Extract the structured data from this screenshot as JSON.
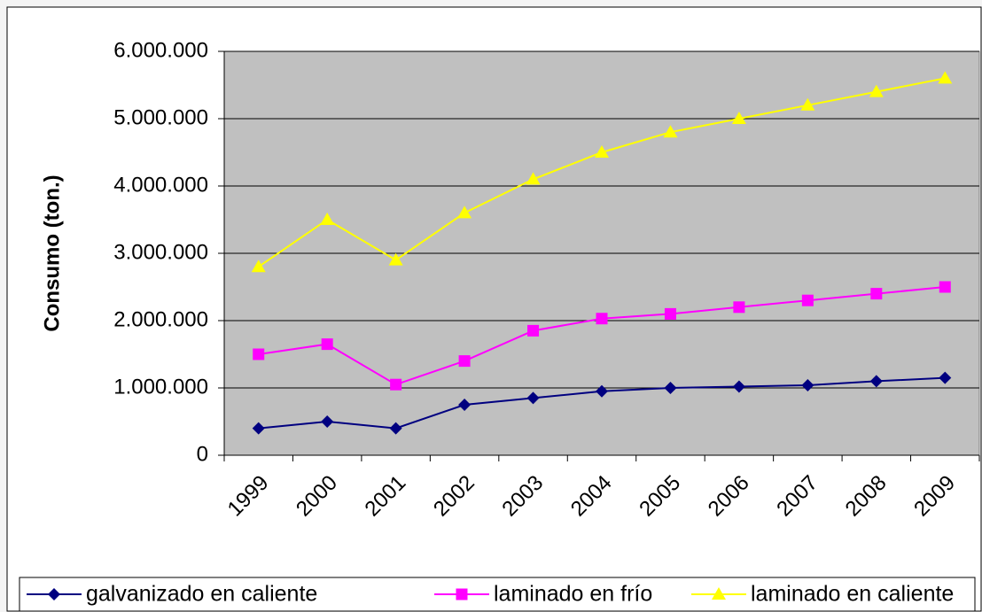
{
  "chart_data": {
    "type": "line",
    "y_label": "Consumo (ton.)",
    "categories": [
      "1999",
      "2000",
      "2001",
      "2002",
      "2003",
      "2004",
      "2005",
      "2006",
      "2007",
      "2008",
      "2009"
    ],
    "series": [
      {
        "name": "galvanizado en caliente",
        "color": "#000080",
        "marker": "diamond",
        "values": [
          400000,
          500000,
          400000,
          750000,
          850000,
          950000,
          1000000,
          1020000,
          1040000,
          1100000,
          1150000
        ]
      },
      {
        "name": "laminado en frío",
        "color": "#ff00ff",
        "marker": "square",
        "values": [
          1500000,
          1650000,
          1050000,
          1400000,
          1850000,
          2030000,
          2100000,
          2200000,
          2300000,
          2400000,
          2500000
        ]
      },
      {
        "name": "laminado en caliente",
        "color": "#ffff00",
        "marker": "triangle",
        "values": [
          2800000,
          3500000,
          2900000,
          3600000,
          4100000,
          4500000,
          4800000,
          5000000,
          5200000,
          5400000,
          5600000
        ]
      }
    ],
    "ylim": [
      0,
      6000000
    ],
    "yticks": [
      0,
      {
        "value": 1000000,
        "label": "1.000.000"
      },
      {
        "value": 2000000,
        "label": "2.000.000"
      },
      {
        "value": 3000000,
        "label": "3.000.000"
      },
      {
        "value": 4000000,
        "label": "4.000.000"
      },
      {
        "value": 5000000,
        "label": "5.000.000"
      },
      {
        "value": 6000000,
        "label": "6.000.000"
      }
    ],
    "grid": true,
    "legend": "bottom",
    "plot_background": "#c0c0c0"
  }
}
